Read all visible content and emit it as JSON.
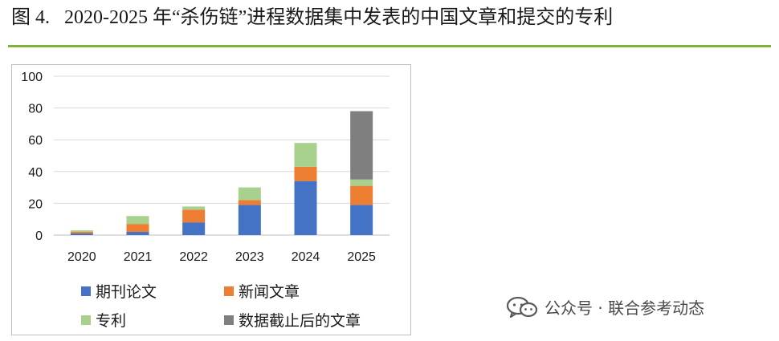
{
  "figure": {
    "number": "图 4.",
    "title": "2020-2025 年“杀伤链”进程数据集中发表的中国文章和提交的专利"
  },
  "watermark": {
    "icon": "wechat-icon",
    "text": "公众号 · 联合参考动态"
  },
  "colors": {
    "rule": "#7db33a",
    "grid": "#d9d9d9"
  },
  "chart_data": {
    "type": "bar",
    "stacked": true,
    "categories": [
      "2020",
      "2021",
      "2022",
      "2023",
      "2024",
      "2025"
    ],
    "series": [
      {
        "name": "期刊论文",
        "color": "#4472c4",
        "values": [
          1,
          2,
          8,
          19,
          34,
          19
        ]
      },
      {
        "name": "新闻文章",
        "color": "#ed7d31",
        "values": [
          1,
          5,
          8,
          3,
          9,
          12
        ]
      },
      {
        "name": "专利",
        "color": "#a9d18e",
        "values": [
          1,
          5,
          2,
          8,
          15,
          4
        ]
      },
      {
        "name": "数据截止后的文章",
        "color": "#7f7f7f",
        "values": [
          0,
          0,
          0,
          0,
          0,
          43
        ]
      }
    ],
    "ylim": [
      0,
      100
    ],
    "yticks": [
      0,
      20,
      40,
      60,
      80,
      100
    ],
    "grid": true,
    "legend_position": "bottom"
  }
}
